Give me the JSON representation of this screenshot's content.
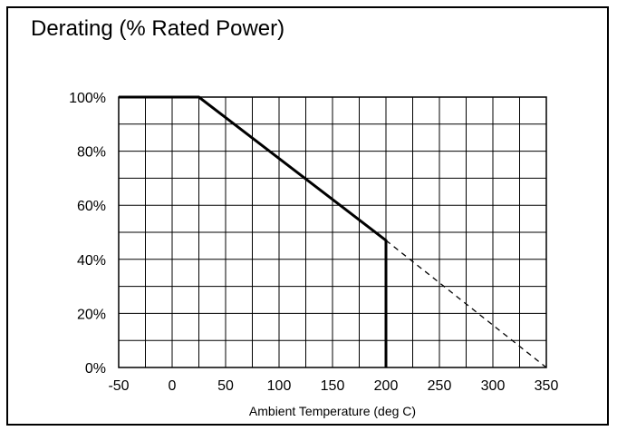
{
  "chart_data": {
    "type": "line",
    "title": "Derating (% Rated Power)",
    "xlabel": "Ambient Temperature (deg C)",
    "ylabel": "",
    "xlim": [
      -50,
      350
    ],
    "ylim": [
      0,
      100
    ],
    "x_ticks": [
      -50,
      0,
      50,
      100,
      150,
      200,
      250,
      300,
      350
    ],
    "y_ticks": [
      0,
      20,
      40,
      60,
      80,
      100
    ],
    "y_tick_labels": [
      "0%",
      "20%",
      "40%",
      "60%",
      "80%",
      "100%"
    ],
    "grid": true,
    "x_grid_step": 25,
    "y_grid_step": 10,
    "series": [
      {
        "style": "solid",
        "x": [
          -50,
          25,
          200,
          200
        ],
        "y": [
          100,
          100,
          47,
          0
        ]
      },
      {
        "style": "dashed",
        "x": [
          200,
          350
        ],
        "y": [
          47,
          0
        ]
      }
    ]
  }
}
